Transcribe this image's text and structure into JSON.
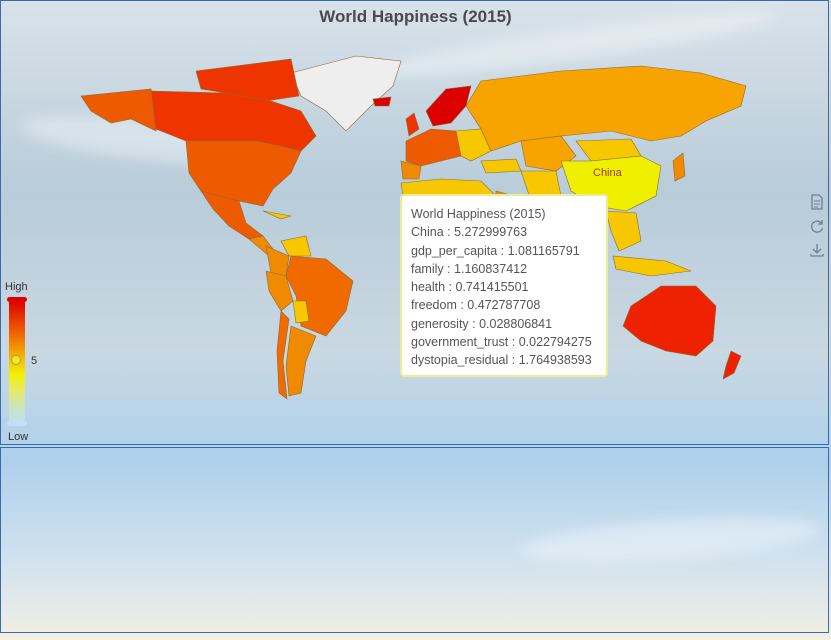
{
  "title": "World Happiness (2015)",
  "tooltip": {
    "header": "World Happiness (2015)",
    "lines": [
      "China : 5.272999763",
      "gdp_per_capita : 1.081165791",
      "family : 1.160837412",
      "health : 0.741415501",
      "freedom : 0.472787708",
      "generosity : 0.028806841",
      "government_trust : 0.022794275",
      "dystopia_residual : 1.764938593"
    ]
  },
  "legend": {
    "high": "High",
    "low": "Low",
    "value": "5"
  },
  "map_label": "China",
  "toolbox": [
    "data-view-icon",
    "restore-icon",
    "save-image-icon"
  ],
  "colors": {
    "high": "#dd0000",
    "mid": "#f7c700",
    "low": "#bfe0f6",
    "border": "#3b6aa8"
  },
  "chart_data": {
    "type": "map",
    "title": "World Happiness (2015)",
    "visual_map": {
      "high_label": "High",
      "low_label": "Low",
      "selected_value": 5
    },
    "highlighted": {
      "name": "China",
      "score": 5.272999763,
      "gdp_per_capita": 1.081165791,
      "family": 1.160837412,
      "health": 0.741415501,
      "freedom": 0.472787708,
      "generosity": 0.028806841,
      "government_trust": 0.022794275,
      "dystopia_residual": 1.764938593
    }
  }
}
